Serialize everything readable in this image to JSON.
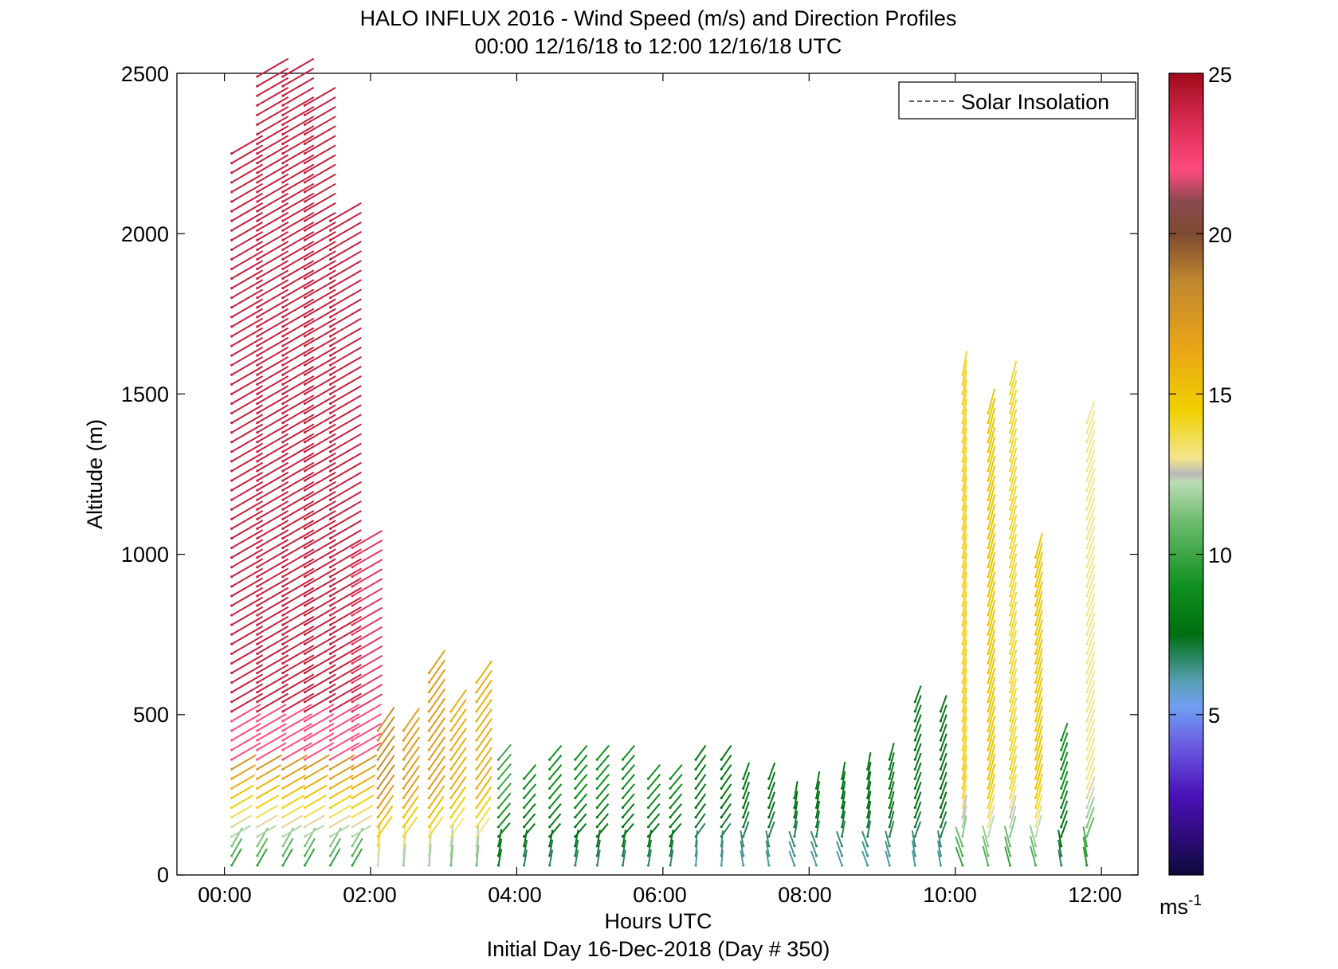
{
  "chart_data": {
    "type": "wind-barb-profile",
    "title": "HALO INFLUX 2016 - Wind Speed (m/s) and Direction Profiles",
    "subtitle": "00:00 12/16/18 to 12:00 12/16/18  UTC",
    "xlabel": "Hours UTC",
    "xlabel2": "Initial Day 16-Dec-2018 (Day # 350)",
    "ylabel": "Altitude (m)",
    "x_ticks": [
      "00:00",
      "02:00",
      "04:00",
      "06:00",
      "08:00",
      "10:00",
      "12:00"
    ],
    "xlim_hours": [
      -0.65,
      12.5
    ],
    "y_ticks": [
      "0",
      "500",
      "1000",
      "1500",
      "2000",
      "2500"
    ],
    "ylim": [
      0,
      2500
    ],
    "legend": "Solar Insolation",
    "legend_placement": "top-right",
    "colorbar": {
      "ticks": [
        "5",
        "10",
        "15",
        "20",
        "25"
      ],
      "range": [
        0,
        25
      ],
      "unit_label": "ms",
      "unit_exp": "-1"
    },
    "series": [
      {
        "t": 0.1,
        "top": 2250,
        "spd": 24,
        "dir": 240
      },
      {
        "t": 0.45,
        "top": 2500,
        "spd": 24,
        "dir": 240
      },
      {
        "t": 0.8,
        "top": 2500,
        "spd": 24,
        "dir": 240
      },
      {
        "t": 1.1,
        "top": 2400,
        "spd": 24,
        "dir": 240
      },
      {
        "t": 1.45,
        "top": 2060,
        "spd": 24,
        "dir": 240
      },
      {
        "t": 1.75,
        "top": 1040,
        "spd": 23,
        "dir": 240
      },
      {
        "t": 2.1,
        "top": 460,
        "spd": 18,
        "dir": 215
      },
      {
        "t": 2.45,
        "top": 460,
        "spd": 17,
        "dir": 215
      },
      {
        "t": 2.8,
        "top": 650,
        "spd": 17,
        "dir": 215
      },
      {
        "t": 3.1,
        "top": 520,
        "spd": 16,
        "dir": 215
      },
      {
        "t": 3.45,
        "top": 600,
        "spd": 16,
        "dir": 215
      },
      {
        "t": 3.75,
        "top": 360,
        "spd": 10,
        "dir": 220
      },
      {
        "t": 4.1,
        "top": 300,
        "spd": 9,
        "dir": 220
      },
      {
        "t": 4.45,
        "top": 360,
        "spd": 9,
        "dir": 220
      },
      {
        "t": 4.8,
        "top": 360,
        "spd": 9,
        "dir": 220
      },
      {
        "t": 5.1,
        "top": 380,
        "spd": 9,
        "dir": 220
      },
      {
        "t": 5.45,
        "top": 380,
        "spd": 9,
        "dir": 220
      },
      {
        "t": 5.8,
        "top": 300,
        "spd": 9,
        "dir": 220
      },
      {
        "t": 6.1,
        "top": 300,
        "spd": 9,
        "dir": 220
      },
      {
        "t": 6.45,
        "top": 360,
        "spd": 8,
        "dir": 215
      },
      {
        "t": 6.8,
        "top": 360,
        "spd": 8,
        "dir": 215
      },
      {
        "t": 7.1,
        "top": 320,
        "spd": 8,
        "dir": 200
      },
      {
        "t": 7.45,
        "top": 300,
        "spd": 8,
        "dir": 200
      },
      {
        "t": 7.8,
        "top": 260,
        "spd": 8,
        "dir": 190
      },
      {
        "t": 8.1,
        "top": 290,
        "spd": 8,
        "dir": 190
      },
      {
        "t": 8.45,
        "top": 300,
        "spd": 8,
        "dir": 190
      },
      {
        "t": 8.8,
        "top": 330,
        "spd": 8,
        "dir": 190
      },
      {
        "t": 9.1,
        "top": 380,
        "spd": 8,
        "dir": 195
      },
      {
        "t": 9.45,
        "top": 540,
        "spd": 8,
        "dir": 200
      },
      {
        "t": 9.8,
        "top": 530,
        "spd": 8,
        "dir": 200
      },
      {
        "t": 10.1,
        "top": 1570,
        "spd": 14,
        "dir": 190
      },
      {
        "t": 10.45,
        "top": 1450,
        "spd": 15,
        "dir": 195
      },
      {
        "t": 10.75,
        "top": 1540,
        "spd": 14,
        "dir": 195
      },
      {
        "t": 11.1,
        "top": 1000,
        "spd": 15,
        "dir": 195
      },
      {
        "t": 11.45,
        "top": 420,
        "spd": 9,
        "dir": 200
      },
      {
        "t": 11.8,
        "top": 1420,
        "spd": 13,
        "dir": 200
      }
    ]
  }
}
